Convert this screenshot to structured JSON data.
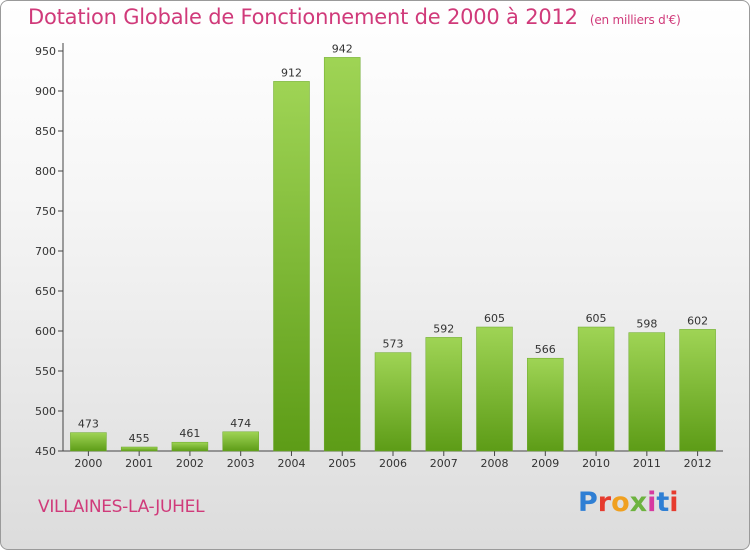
{
  "title": "Dotation Globale de Fonctionnement de 2000 à 2012",
  "subtitle": "(en milliers d'€)",
  "commune": "VILLAINES-LA-JUHEL",
  "logo_text": "Proxiti",
  "colors": {
    "title": "#d03a7a",
    "bar_top": "#9fd455",
    "bar_bottom": "#5d9c17",
    "logo": [
      "#2f7fd4",
      "#e63b2e",
      "#f0a020",
      "#6db33f",
      "#d63aa0",
      "#2f7fd4",
      "#e63b2e"
    ]
  },
  "chart_data": {
    "type": "bar",
    "title": "Dotation Globale de Fonctionnement de 2000 à 2012",
    "subtitle": "(en milliers d'€)",
    "categories": [
      "2000",
      "2001",
      "2002",
      "2003",
      "2004",
      "2005",
      "2006",
      "2007",
      "2008",
      "2009",
      "2010",
      "2011",
      "2012"
    ],
    "values": [
      473,
      455,
      461,
      474,
      912,
      942,
      573,
      592,
      605,
      566,
      605,
      598,
      602
    ],
    "ylim": [
      450,
      950
    ],
    "yticks": [
      450,
      500,
      550,
      600,
      650,
      700,
      750,
      800,
      850,
      900,
      950
    ],
    "grid": false,
    "xlabel": "",
    "ylabel": ""
  }
}
